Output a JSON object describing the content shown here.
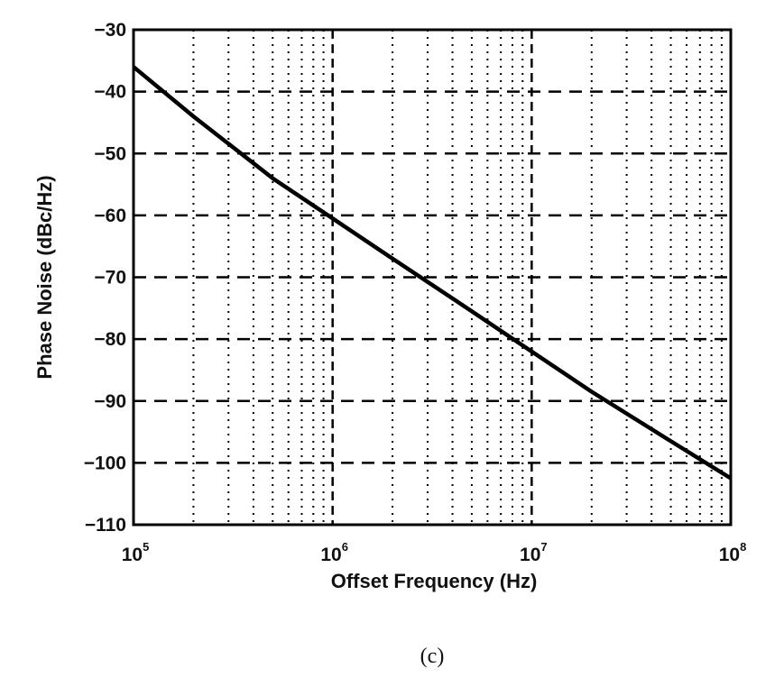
{
  "caption": "(c)",
  "chart_data": {
    "type": "line",
    "title": "",
    "xlabel": "Offset Frequency (Hz)",
    "ylabel": "Phase Noise (dBc/Hz)",
    "xscale": "log",
    "xlim": [
      100000,
      100000000
    ],
    "ylim": [
      -110,
      -30
    ],
    "x_ticks": [
      {
        "base": "10",
        "exp": "5"
      },
      {
        "base": "10",
        "exp": "6"
      },
      {
        "base": "10",
        "exp": "7"
      },
      {
        "base": "10",
        "exp": "8"
      }
    ],
    "y_ticks": [
      "−30",
      "−40",
      "−50",
      "−60",
      "−70",
      "−80",
      "−90",
      "−100",
      "−110"
    ],
    "grid": {
      "major_y": "dashed",
      "minor_x": "dotted",
      "major_x": "dashed"
    },
    "series": [
      {
        "x": [
          100000,
          200000,
          500000,
          1000000,
          2000000,
          5000000,
          10000000,
          20000000,
          50000000,
          100000000
        ],
        "y": [
          -36,
          -44,
          -54,
          -60.5,
          -67,
          -75.5,
          -82,
          -88.5,
          -96.5,
          -102.5
        ],
        "color": "#000000"
      }
    ]
  }
}
